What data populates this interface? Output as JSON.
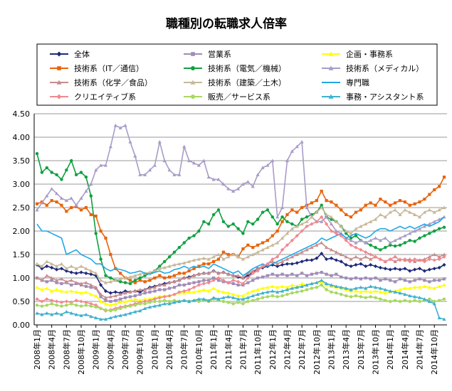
{
  "chart_data": {
    "type": "line",
    "title": "職種別の転職求人倍率",
    "xlabel": "",
    "ylabel": "",
    "ylim": [
      0,
      4.5
    ],
    "yticks": [
      "0.00",
      "0.50",
      "1.00",
      "1.50",
      "2.00",
      "2.50",
      "3.00",
      "3.50",
      "4.00",
      "4.50"
    ],
    "x_tick_labels": [
      "2008年1月",
      "2008年4月",
      "2008年7月",
      "2008年10月",
      "2009年1月",
      "2009年4月",
      "2009年7月",
      "2009年10月",
      "2010年1月",
      "2010年4月",
      "2010年7月",
      "2010年10月",
      "2011年1月",
      "2011年4月",
      "2011年7月",
      "2011年10月",
      "2012年1月",
      "2012年4月",
      "2012年7月",
      "2012年10月",
      "2013年1月",
      "2013年4月",
      "2013年7月",
      "2013年10月",
      "2014年1月",
      "2014年4月",
      "2014年7月",
      "2014年10月"
    ],
    "n_points": 84,
    "legend_position": "top",
    "series": [
      {
        "name": "全体",
        "color": "#1f2a7a",
        "marker": "diamond",
        "values": [
          1.28,
          1.2,
          1.25,
          1.22,
          1.18,
          1.2,
          1.15,
          1.12,
          1.1,
          1.12,
          1.1,
          1.08,
          1.05,
          0.85,
          0.72,
          0.68,
          0.7,
          0.68,
          0.72,
          0.7,
          0.72,
          0.7,
          0.75,
          0.8,
          0.82,
          0.85,
          0.88,
          0.9,
          0.92,
          0.95,
          1.0,
          1.02,
          1.05,
          1.08,
          1.1,
          1.1,
          1.15,
          1.1,
          1.12,
          1.08,
          1.05,
          1.02,
          1.0,
          1.05,
          1.12,
          1.2,
          1.22,
          1.25,
          1.28,
          1.25,
          1.28,
          1.3,
          1.3,
          1.32,
          1.35,
          1.38,
          1.38,
          1.42,
          1.52,
          1.4,
          1.42,
          1.38,
          1.35,
          1.28,
          1.25,
          1.28,
          1.3,
          1.25,
          1.28,
          1.25,
          1.22,
          1.2,
          1.18,
          1.2,
          1.18,
          1.2,
          1.15,
          1.18,
          1.2,
          1.15,
          1.18,
          1.2,
          1.22,
          1.28
        ]
      },
      {
        "name": "営業系",
        "color": "#a08cb8",
        "marker": "square",
        "values": [
          1.0,
          0.95,
          0.92,
          0.95,
          0.9,
          0.88,
          0.9,
          0.85,
          0.88,
          0.85,
          0.82,
          0.8,
          0.78,
          0.6,
          0.52,
          0.5,
          0.52,
          0.55,
          0.58,
          0.6,
          0.62,
          0.65,
          0.68,
          0.7,
          0.72,
          0.75,
          0.75,
          0.78,
          0.8,
          0.85,
          0.85,
          0.88,
          0.9,
          0.92,
          0.95,
          0.95,
          1.0,
          0.95,
          0.92,
          0.9,
          0.88,
          0.85,
          0.85,
          0.9,
          0.95,
          1.0,
          1.02,
          1.05,
          1.08,
          1.05,
          1.08,
          1.05,
          1.08,
          1.05,
          1.1,
          1.05,
          1.08,
          1.1,
          1.12,
          1.08,
          1.05,
          1.08,
          1.02,
          1.0,
          0.98,
          1.0,
          0.98,
          1.0,
          0.98,
          1.0,
          0.95,
          0.98,
          0.95,
          0.92,
          0.98,
          0.95,
          0.92,
          0.95,
          0.98,
          0.95,
          0.92,
          0.95,
          0.95,
          0.98
        ]
      },
      {
        "name": "企画・事務系",
        "color": "#ffff00",
        "marker": "triangle",
        "values": [
          0.8,
          0.75,
          0.78,
          0.72,
          0.75,
          0.72,
          0.7,
          0.72,
          0.7,
          0.68,
          0.7,
          0.65,
          0.62,
          0.5,
          0.45,
          0.42,
          0.45,
          0.48,
          0.5,
          0.52,
          0.55,
          0.52,
          0.55,
          0.55,
          0.58,
          0.6,
          0.62,
          0.62,
          0.65,
          0.68,
          0.68,
          0.7,
          0.7,
          0.72,
          0.75,
          0.72,
          0.78,
          0.72,
          0.7,
          0.68,
          0.65,
          0.62,
          0.62,
          0.68,
          0.72,
          0.75,
          0.78,
          0.8,
          0.82,
          0.8,
          0.82,
          0.8,
          0.85,
          0.82,
          0.88,
          0.85,
          0.88,
          0.9,
          0.92,
          0.85,
          0.82,
          0.8,
          0.78,
          0.75,
          0.72,
          0.72,
          0.7,
          0.72,
          0.7,
          0.72,
          0.7,
          0.68,
          0.7,
          0.72,
          0.75,
          0.78,
          0.78,
          0.8,
          0.8,
          0.82,
          0.8,
          0.78,
          0.82,
          0.85
        ]
      },
      {
        "name": "技術系（IT／通信）",
        "color": "#e8640a",
        "marker": "square",
        "values": [
          2.58,
          2.62,
          2.55,
          2.65,
          2.62,
          2.55,
          2.42,
          2.5,
          2.52,
          2.45,
          2.5,
          2.35,
          2.32,
          2.0,
          1.85,
          1.5,
          1.2,
          1.1,
          1.0,
          0.95,
          0.9,
          0.95,
          0.92,
          0.95,
          1.0,
          1.05,
          1.0,
          1.02,
          1.05,
          1.1,
          1.1,
          1.15,
          1.2,
          1.25,
          1.3,
          1.3,
          1.35,
          1.4,
          1.55,
          1.5,
          1.5,
          1.45,
          1.62,
          1.7,
          1.65,
          1.7,
          1.75,
          1.8,
          1.9,
          2.0,
          2.2,
          2.35,
          2.45,
          2.4,
          2.5,
          2.55,
          2.6,
          2.65,
          2.85,
          2.65,
          2.62,
          2.55,
          2.45,
          2.35,
          2.3,
          2.4,
          2.45,
          2.55,
          2.6,
          2.55,
          2.68,
          2.62,
          2.55,
          2.6,
          2.65,
          2.62,
          2.55,
          2.58,
          2.62,
          2.68,
          2.78,
          2.88,
          2.95,
          3.15
        ]
      },
      {
        "name": "技術系（電気／機械）",
        "color": "#10a040",
        "marker": "circle",
        "values": [
          3.65,
          3.25,
          3.35,
          3.25,
          3.2,
          3.1,
          3.3,
          3.5,
          3.2,
          3.25,
          3.15,
          2.75,
          1.95,
          1.4,
          1.05,
          1.0,
          0.95,
          0.92,
          0.9,
          0.88,
          0.95,
          1.0,
          1.05,
          1.1,
          1.15,
          1.25,
          1.35,
          1.45,
          1.55,
          1.65,
          1.75,
          1.85,
          1.9,
          2.0,
          2.2,
          2.15,
          2.35,
          2.45,
          2.2,
          2.1,
          2.15,
          2.05,
          1.95,
          2.2,
          2.15,
          2.25,
          2.4,
          2.45,
          2.3,
          2.15,
          2.3,
          2.2,
          2.15,
          2.1,
          2.25,
          2.3,
          2.35,
          2.4,
          2.55,
          2.3,
          2.25,
          2.2,
          2.1,
          1.95,
          1.85,
          1.9,
          1.8,
          1.75,
          1.7,
          1.65,
          1.6,
          1.65,
          1.7,
          1.68,
          1.7,
          1.75,
          1.8,
          1.78,
          1.85,
          1.9,
          1.95,
          2.0,
          2.05,
          2.08
        ]
      },
      {
        "name": "技術系（メディカル）",
        "color": "#a89cc8",
        "marker": "triangle",
        "values": [
          2.45,
          2.6,
          2.75,
          2.9,
          2.8,
          2.7,
          2.65,
          2.7,
          2.55,
          2.7,
          2.85,
          3.0,
          3.3,
          3.4,
          3.4,
          3.8,
          4.25,
          4.2,
          4.25,
          3.9,
          3.6,
          3.2,
          3.2,
          3.3,
          3.4,
          3.9,
          3.5,
          3.3,
          3.2,
          3.2,
          3.8,
          3.5,
          3.45,
          3.4,
          3.5,
          3.15,
          3.1,
          3.1,
          3.0,
          2.9,
          2.85,
          2.9,
          3.0,
          3.05,
          2.95,
          3.2,
          3.35,
          3.4,
          3.5,
          2.3,
          2.5,
          3.5,
          3.7,
          3.8,
          3.9,
          2.5,
          2.3,
          2.2,
          2.2,
          2.3,
          2.15,
          2.0,
          1.95,
          1.85,
          1.8,
          1.75,
          1.8,
          1.75,
          1.8,
          1.85,
          1.8,
          1.85,
          1.75,
          1.8,
          1.85,
          1.9,
          1.95,
          2.0,
          2.05,
          2.1,
          2.15,
          2.2,
          2.25,
          2.3
        ]
      },
      {
        "name": "技術系（化学／食品）",
        "color": "#c88c8c",
        "marker": "triangle",
        "values": [
          1.0,
          0.95,
          1.05,
          1.0,
          0.95,
          0.98,
          0.92,
          0.95,
          0.9,
          0.88,
          0.9,
          0.85,
          0.8,
          0.65,
          0.58,
          0.6,
          0.62,
          0.65,
          0.68,
          0.7,
          0.72,
          0.75,
          0.75,
          0.78,
          0.8,
          0.85,
          0.85,
          0.9,
          0.92,
          0.95,
          1.0,
          1.0,
          1.05,
          1.08,
          1.1,
          1.1,
          1.15,
          1.1,
          1.12,
          1.08,
          1.05,
          1.05,
          1.0,
          1.1,
          1.15,
          1.2,
          1.25,
          1.3,
          1.35,
          1.3,
          1.35,
          1.4,
          1.45,
          1.5,
          1.55,
          1.6,
          1.65,
          1.7,
          1.75,
          1.65,
          1.6,
          1.55,
          1.5,
          1.45,
          1.4,
          1.45,
          1.4,
          1.45,
          1.4,
          1.45,
          1.4,
          1.35,
          1.4,
          1.35,
          1.4,
          1.38,
          1.4,
          1.35,
          1.38,
          1.4,
          1.45,
          1.5,
          1.45,
          1.5
        ]
      },
      {
        "name": "技術系（建築／土木）",
        "color": "#c8b898",
        "marker": "triangle",
        "values": [
          1.3,
          1.25,
          1.35,
          1.3,
          1.25,
          1.3,
          1.2,
          1.25,
          1.2,
          1.25,
          1.2,
          1.15,
          1.1,
          0.95,
          0.9,
          0.92,
          0.95,
          0.98,
          1.0,
          1.02,
          1.05,
          1.08,
          1.1,
          1.12,
          1.15,
          1.2,
          1.22,
          1.25,
          1.28,
          1.3,
          1.32,
          1.35,
          1.38,
          1.4,
          1.42,
          1.4,
          1.45,
          1.5,
          1.4,
          1.45,
          1.5,
          1.45,
          1.4,
          1.45,
          1.5,
          1.55,
          1.6,
          1.65,
          1.7,
          1.75,
          1.85,
          1.95,
          2.05,
          2.1,
          2.15,
          2.2,
          2.3,
          2.4,
          2.5,
          2.35,
          2.3,
          2.2,
          2.1,
          2.0,
          1.95,
          2.05,
          2.1,
          2.15,
          2.2,
          2.25,
          2.35,
          2.3,
          2.4,
          2.45,
          2.35,
          2.45,
          2.4,
          2.35,
          2.3,
          2.4,
          2.45,
          2.4,
          2.45,
          2.5
        ]
      },
      {
        "name": "専門職",
        "color": "#20a8e8",
        "marker": "none",
        "values": [
          2.15,
          2.0,
          2.0,
          1.95,
          1.9,
          1.85,
          1.5,
          1.55,
          1.6,
          1.5,
          1.45,
          1.4,
          1.3,
          1.3,
          1.2,
          1.15,
          1.2,
          1.18,
          1.15,
          1.1,
          1.12,
          1.15,
          1.1,
          1.08,
          1.12,
          1.15,
          1.1,
          1.12,
          1.18,
          1.2,
          1.25,
          1.2,
          1.25,
          1.22,
          1.25,
          1.2,
          1.3,
          1.25,
          1.2,
          1.15,
          1.1,
          1.15,
          1.05,
          1.12,
          1.2,
          1.25,
          1.3,
          1.25,
          1.3,
          1.35,
          1.4,
          1.45,
          1.5,
          1.55,
          1.6,
          1.65,
          1.7,
          1.75,
          1.85,
          1.8,
          1.85,
          1.9,
          1.95,
          1.85,
          1.9,
          1.95,
          1.9,
          1.85,
          1.9,
          2.0,
          2.05,
          2.05,
          2.0,
          2.05,
          2.1,
          2.05,
          2.1,
          2.05,
          2.1,
          2.15,
          2.1,
          2.15,
          2.2,
          2.3
        ]
      },
      {
        "name": "クリエイティブ系",
        "color": "#f08890",
        "marker": "diamond",
        "values": [
          0.55,
          0.5,
          0.55,
          0.52,
          0.5,
          0.48,
          0.5,
          0.48,
          0.52,
          0.5,
          0.48,
          0.45,
          0.42,
          0.35,
          0.3,
          0.32,
          0.35,
          0.38,
          0.4,
          0.42,
          0.45,
          0.48,
          0.5,
          0.52,
          0.55,
          0.58,
          0.6,
          0.62,
          0.65,
          0.7,
          0.72,
          0.75,
          0.8,
          0.85,
          0.88,
          0.9,
          0.95,
          1.0,
          0.95,
          0.9,
          0.95,
          0.92,
          0.88,
          1.0,
          1.1,
          1.15,
          1.25,
          1.3,
          1.4,
          1.45,
          1.6,
          1.7,
          1.8,
          1.9,
          2.0,
          2.1,
          2.15,
          2.2,
          2.3,
          2.15,
          2.0,
          1.95,
          1.9,
          1.8,
          1.7,
          1.65,
          1.6,
          1.55,
          1.5,
          1.45,
          1.4,
          1.35,
          1.4,
          1.45,
          1.38,
          1.4,
          1.35,
          1.4,
          1.38,
          1.35,
          1.4,
          1.38,
          1.4,
          1.45
        ]
      },
      {
        "name": "販売／サービス系",
        "color": "#a8d860",
        "marker": "circle",
        "values": [
          0.42,
          0.4,
          0.42,
          0.45,
          0.42,
          0.4,
          0.42,
          0.45,
          0.42,
          0.4,
          0.42,
          0.4,
          0.38,
          0.35,
          0.32,
          0.3,
          0.32,
          0.35,
          0.38,
          0.4,
          0.42,
          0.45,
          0.45,
          0.48,
          0.5,
          0.5,
          0.52,
          0.5,
          0.52,
          0.5,
          0.52,
          0.5,
          0.52,
          0.5,
          0.52,
          0.5,
          0.55,
          0.52,
          0.5,
          0.48,
          0.45,
          0.48,
          0.45,
          0.5,
          0.52,
          0.55,
          0.58,
          0.6,
          0.62,
          0.6,
          0.62,
          0.65,
          0.68,
          0.7,
          0.72,
          0.75,
          0.78,
          0.8,
          0.85,
          0.75,
          0.7,
          0.68,
          0.65,
          0.62,
          0.6,
          0.62,
          0.6,
          0.58,
          0.6,
          0.58,
          0.55,
          0.52,
          0.5,
          0.52,
          0.5,
          0.52,
          0.5,
          0.52,
          0.5,
          0.52,
          0.55,
          0.5,
          0.52,
          0.55
        ]
      },
      {
        "name": "事務・アシスタント系",
        "color": "#40b0d0",
        "marker": "triangle",
        "values": [
          0.25,
          0.22,
          0.25,
          0.22,
          0.25,
          0.22,
          0.28,
          0.25,
          0.22,
          0.2,
          0.22,
          0.18,
          0.15,
          0.12,
          0.12,
          0.15,
          0.18,
          0.2,
          0.22,
          0.25,
          0.28,
          0.3,
          0.35,
          0.38,
          0.4,
          0.42,
          0.45,
          0.45,
          0.48,
          0.5,
          0.52,
          0.5,
          0.52,
          0.55,
          0.55,
          0.52,
          0.58,
          0.55,
          0.58,
          0.6,
          0.58,
          0.55,
          0.55,
          0.58,
          0.62,
          0.65,
          0.68,
          0.7,
          0.72,
          0.7,
          0.72,
          0.75,
          0.78,
          0.8,
          0.82,
          0.85,
          0.88,
          0.9,
          0.95,
          0.88,
          0.85,
          0.82,
          0.8,
          0.78,
          0.75,
          0.78,
          0.8,
          0.78,
          0.82,
          0.8,
          0.78,
          0.75,
          0.72,
          0.7,
          0.68,
          0.65,
          0.62,
          0.6,
          0.58,
          0.55,
          0.5,
          0.45,
          0.15,
          0.12
        ]
      }
    ]
  }
}
